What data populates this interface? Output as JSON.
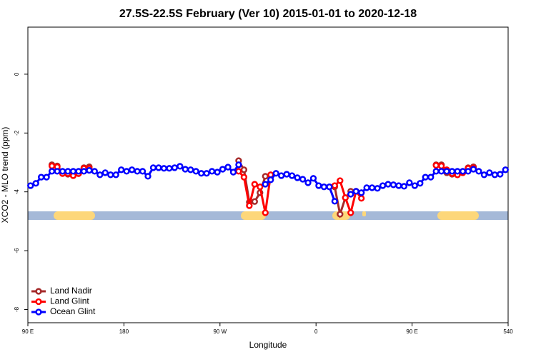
{
  "chart_data": {
    "type": "line",
    "title": "27.5S-22.5S February (Ver 10)   2015-01-01 to 2020-12-18",
    "x_label": "Longitude",
    "y_label": "XCO2 - MLO trend (ppm)",
    "xlim": [
      90,
      540
    ],
    "xticks": [
      {
        "value": 90,
        "label": "90 E"
      },
      180,
      {
        "value": 270,
        "label": "90 W"
      },
      {
        "value": 360,
        "label": "0"
      },
      {
        "value": 450,
        "label": "90 E"
      },
      540
    ],
    "ylim": [
      -8.45,
      1.6
    ],
    "yticks": [
      0,
      -2,
      -4,
      -6,
      -8
    ],
    "legend": "bottom-left",
    "x": [
      92.5,
      97.5,
      102.5,
      107.5,
      112.5,
      117.5,
      122.5,
      127.5,
      132.5,
      137.5,
      142.5,
      147.5,
      152.5,
      157.5,
      162.5,
      167.5,
      172.5,
      177.5,
      182.5,
      187.5,
      192.5,
      197.5,
      202.5,
      207.5,
      212.5,
      217.5,
      222.5,
      227.5,
      232.5,
      237.5,
      242.5,
      247.5,
      252.5,
      257.5,
      262.5,
      267.5,
      272.5,
      277.5,
      282.5,
      287.5,
      292.5,
      297.5,
      302.5,
      307.5,
      312.5,
      317.5,
      322.5,
      327.5,
      332.5,
      337.5,
      342.5,
      347.5,
      352.5,
      357.5,
      362.5,
      367.5,
      372.5,
      377.5,
      382.5,
      387.5,
      392.5,
      397.5,
      402.5,
      407.5,
      412.5,
      417.5,
      422.5,
      427.5,
      432.5,
      437.5,
      442.5,
      447.5,
      452.5,
      457.5,
      462.5,
      467.5,
      472.5,
      477.5,
      482.5,
      487.5,
      492.5,
      497.5,
      502.5,
      507.5,
      512.5,
      517.5,
      522.5,
      527.5,
      532.5,
      537.5
    ],
    "series": [
      {
        "name": "Land Nadir",
        "color": "#a52a2a",
        "values": [
          null,
          null,
          null,
          null,
          -3.08,
          -3.12,
          -3.35,
          -3.4,
          -3.4,
          -3.38,
          -3.18,
          -3.15,
          null,
          null,
          null,
          null,
          null,
          null,
          null,
          null,
          null,
          null,
          null,
          null,
          null,
          null,
          null,
          null,
          null,
          null,
          null,
          null,
          null,
          null,
          null,
          null,
          null,
          null,
          null,
          -2.94,
          -3.25,
          -4.35,
          -4.33,
          -4.03,
          -3.47,
          null,
          null,
          null,
          null,
          null,
          null,
          null,
          null,
          null,
          null,
          null,
          null,
          -3.83,
          -4.76,
          -4.2,
          -3.98,
          -3.98,
          -4.03,
          null,
          null,
          null,
          null,
          null,
          null,
          null,
          null,
          null,
          null,
          null,
          null,
          null,
          -3.08,
          -3.08,
          -3.35,
          -3.4,
          -3.42,
          -3.35,
          -3.18,
          -3.15,
          null,
          null,
          null,
          null,
          null,
          null
        ]
      },
      {
        "name": "Land Glint",
        "color": "#ff0000",
        "values": [
          null,
          null,
          null,
          null,
          -3.12,
          -3.15,
          -3.38,
          -3.38,
          -3.45,
          -3.38,
          -3.2,
          -3.2,
          null,
          null,
          null,
          null,
          null,
          null,
          null,
          null,
          null,
          null,
          null,
          null,
          null,
          null,
          null,
          null,
          null,
          null,
          null,
          null,
          null,
          null,
          null,
          null,
          null,
          null,
          null,
          -3.3,
          -3.5,
          -4.47,
          -3.74,
          -3.83,
          -4.71,
          -3.42,
          null,
          null,
          null,
          null,
          null,
          null,
          null,
          null,
          null,
          null,
          null,
          -3.79,
          -3.62,
          -4.2,
          -4.71,
          -3.98,
          -4.22,
          null,
          null,
          null,
          null,
          null,
          null,
          null,
          null,
          null,
          null,
          null,
          null,
          null,
          -3.1,
          -3.12,
          -3.25,
          -3.38,
          -3.42,
          -3.35,
          -3.2,
          -3.18,
          null,
          null,
          null,
          null,
          null,
          null
        ]
      },
      {
        "name": "Ocean Glint",
        "color": "#0000ff",
        "values": [
          -3.79,
          -3.71,
          -3.5,
          -3.5,
          -3.3,
          -3.3,
          -3.3,
          -3.3,
          -3.3,
          -3.3,
          -3.3,
          -3.27,
          -3.3,
          -3.42,
          -3.35,
          -3.42,
          -3.42,
          -3.25,
          -3.3,
          -3.25,
          -3.3,
          -3.3,
          -3.47,
          -3.18,
          -3.18,
          -3.2,
          -3.2,
          -3.18,
          -3.13,
          -3.23,
          -3.25,
          -3.3,
          -3.37,
          -3.37,
          -3.3,
          -3.33,
          -3.23,
          -3.16,
          -3.33,
          -3.08,
          null,
          null,
          null,
          null,
          -3.74,
          -3.59,
          -3.37,
          -3.45,
          -3.4,
          -3.45,
          -3.52,
          -3.57,
          -3.69,
          -3.54,
          -3.79,
          -3.83,
          -3.83,
          -4.32,
          null,
          null,
          -4.08,
          -3.98,
          -4.03,
          -3.86,
          -3.86,
          -3.88,
          -3.79,
          -3.74,
          -3.76,
          -3.79,
          -3.81,
          -3.69,
          -3.79,
          -3.71,
          -3.5,
          -3.5,
          -3.3,
          -3.3,
          -3.3,
          -3.3,
          -3.3,
          -3.3,
          -3.3,
          -3.23,
          -3.3,
          -3.42,
          -3.35,
          -3.42,
          -3.4,
          -3.25
        ]
      }
    ]
  }
}
